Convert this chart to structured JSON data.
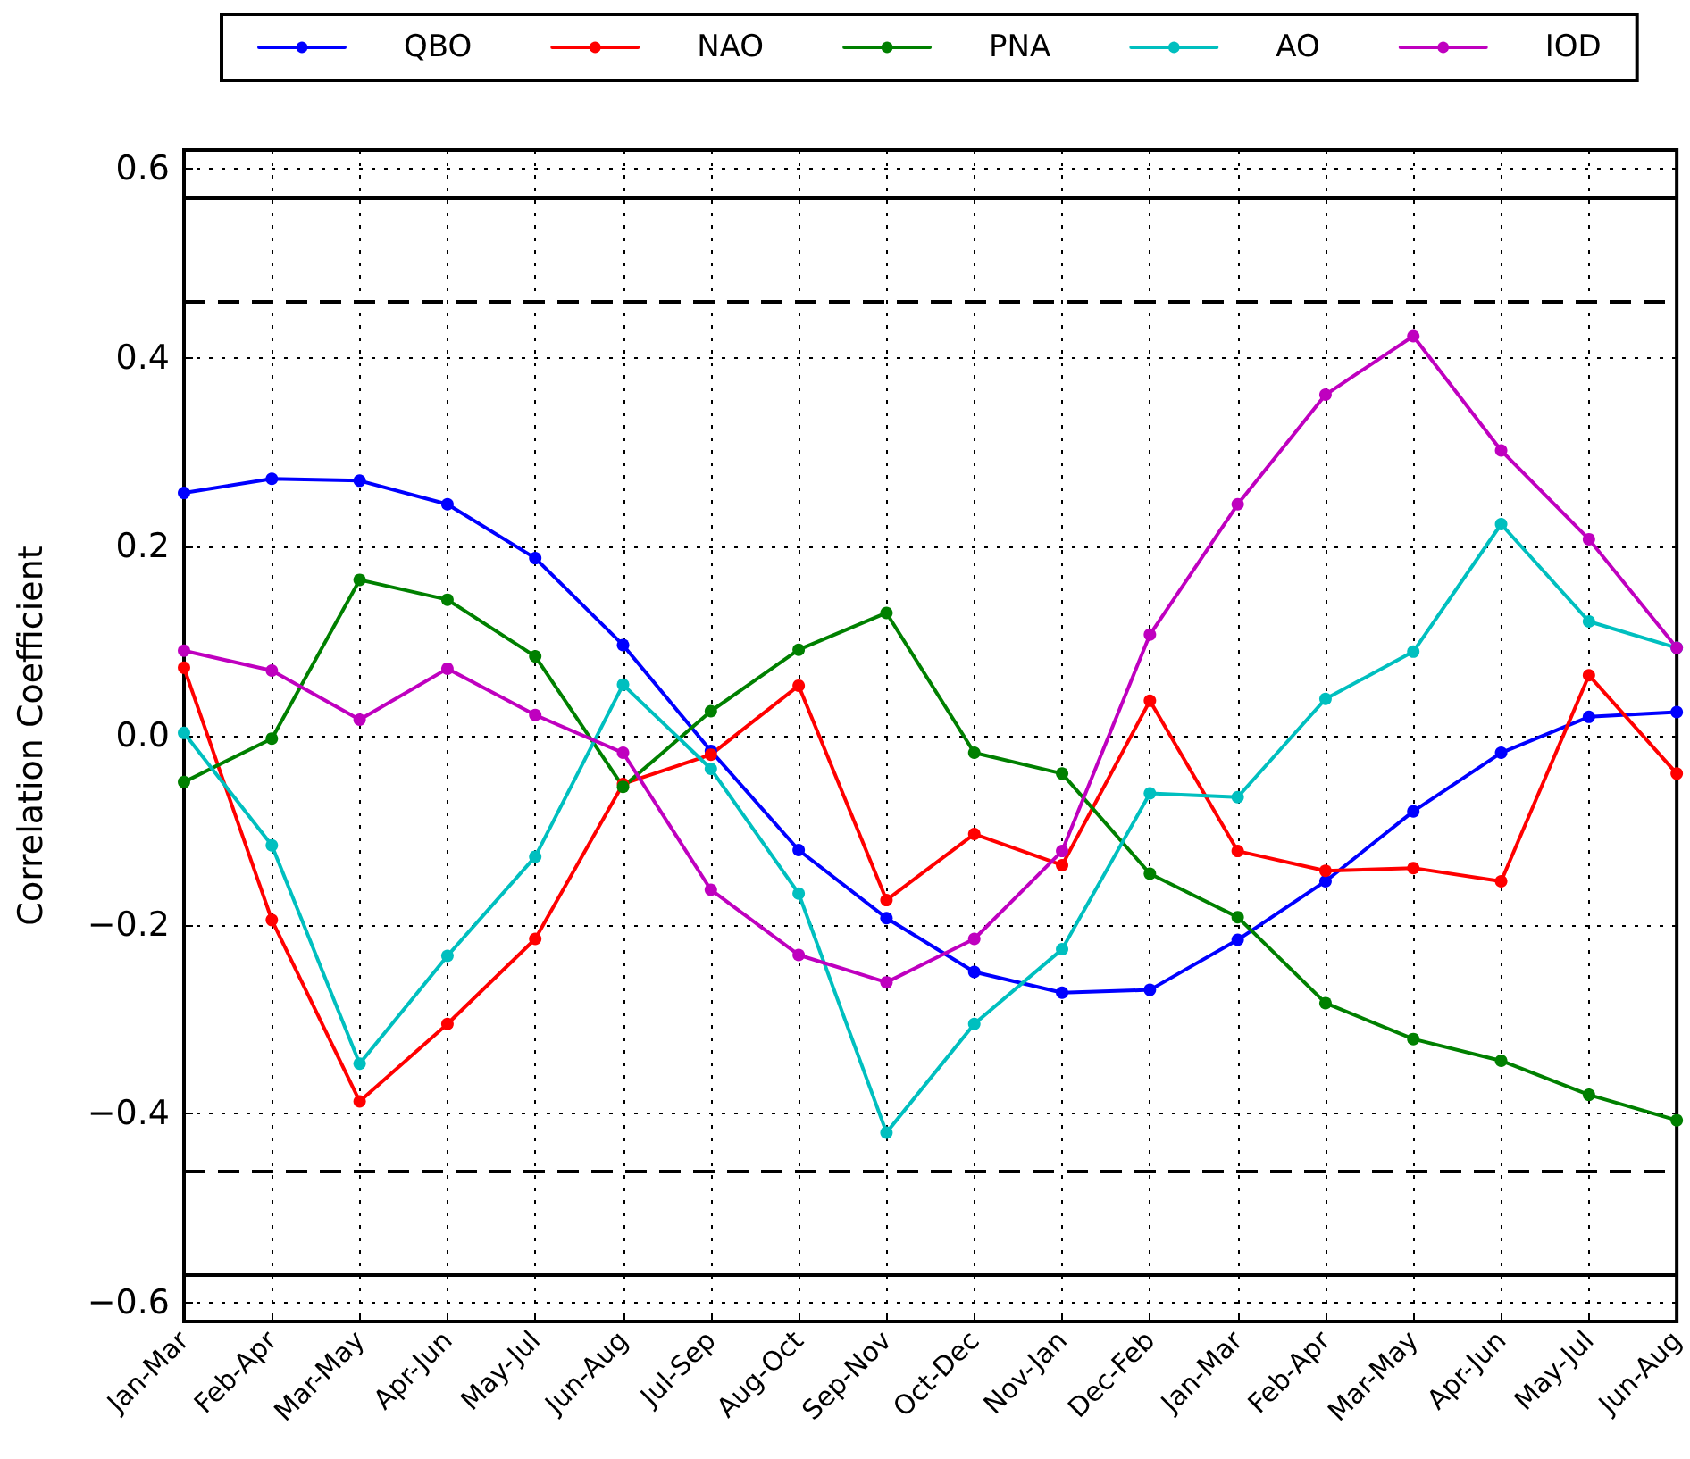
{
  "chart_data": {
    "type": "line",
    "ylabel": "Correlation Coefficient",
    "categories": [
      "Jan-Mar",
      "Feb-Apr",
      "Mar-May",
      "Apr-Jun",
      "May-Jul",
      "Jun-Aug",
      "Jul-Sep",
      "Aug-Oct",
      "Sep-Nov",
      "Oct-Dec",
      "Nov-Jan",
      "Dec-Feb",
      "Jan-Mar",
      "Feb-Apr",
      "Mar-May",
      "Apr-Jun",
      "May-Jul",
      "Jun-Aug"
    ],
    "series": [
      {
        "name": "QBO",
        "color": "#0000ff",
        "values": [
          0.257,
          0.272,
          0.27,
          0.245,
          0.188,
          0.096,
          -0.016,
          -0.121,
          -0.193,
          -0.25,
          -0.272,
          -0.269,
          -0.216,
          -0.154,
          -0.08,
          -0.018,
          0.02,
          0.025
        ]
      },
      {
        "name": "NAO",
        "color": "#ff0000",
        "values": [
          0.072,
          -0.195,
          -0.387,
          -0.305,
          -0.215,
          -0.051,
          -0.02,
          0.053,
          -0.174,
          -0.104,
          -0.137,
          0.037,
          -0.122,
          -0.143,
          -0.14,
          -0.154,
          0.064,
          -0.04
        ]
      },
      {
        "name": "PNA",
        "color": "#008000",
        "values": [
          -0.049,
          -0.003,
          0.165,
          0.144,
          0.084,
          -0.054,
          0.026,
          0.091,
          0.13,
          -0.018,
          -0.04,
          -0.146,
          -0.192,
          -0.283,
          -0.321,
          -0.344,
          -0.38,
          -0.407
        ]
      },
      {
        "name": "AO",
        "color": "#00bfbf",
        "values": [
          0.003,
          -0.116,
          -0.347,
          -0.233,
          -0.128,
          0.054,
          -0.035,
          -0.167,
          -0.42,
          -0.305,
          -0.226,
          -0.061,
          -0.065,
          0.039,
          0.089,
          0.224,
          0.121,
          0.093
        ]
      },
      {
        "name": "IOD",
        "color": "#bf00bf",
        "values": [
          0.09,
          0.069,
          0.017,
          0.071,
          0.022,
          -0.018,
          -0.163,
          -0.232,
          -0.261,
          -0.215,
          -0.122,
          0.107,
          0.245,
          0.361,
          0.423,
          0.302,
          0.208,
          0.093
        ]
      }
    ],
    "ylim": [
      -0.62,
      0.62
    ],
    "yticks": [
      {
        "value": -0.6,
        "label": "−0.6"
      },
      {
        "value": -0.4,
        "label": "−0.4"
      },
      {
        "value": -0.2,
        "label": "−0.2"
      },
      {
        "value": 0,
        "label": "0.0"
      },
      {
        "value": 0.2,
        "label": "0.2"
      },
      {
        "value": 0.4,
        "label": "0.4"
      },
      {
        "value": 0.6,
        "label": "0.6"
      }
    ],
    "ref_lines": [
      {
        "axis": "y",
        "value": 0.57,
        "color": "#000000",
        "line_style": "solid"
      },
      {
        "axis": "y",
        "value": 0.46,
        "color": "#000000",
        "line_style": "dashed"
      },
      {
        "axis": "y",
        "value": -0.46,
        "color": "#000000",
        "line_style": "dashed"
      },
      {
        "axis": "y",
        "value": -0.57,
        "color": "#000000",
        "line_style": "solid"
      }
    ],
    "grid": true,
    "legend": "top",
    "marker": "circle",
    "line_style": "solid"
  }
}
